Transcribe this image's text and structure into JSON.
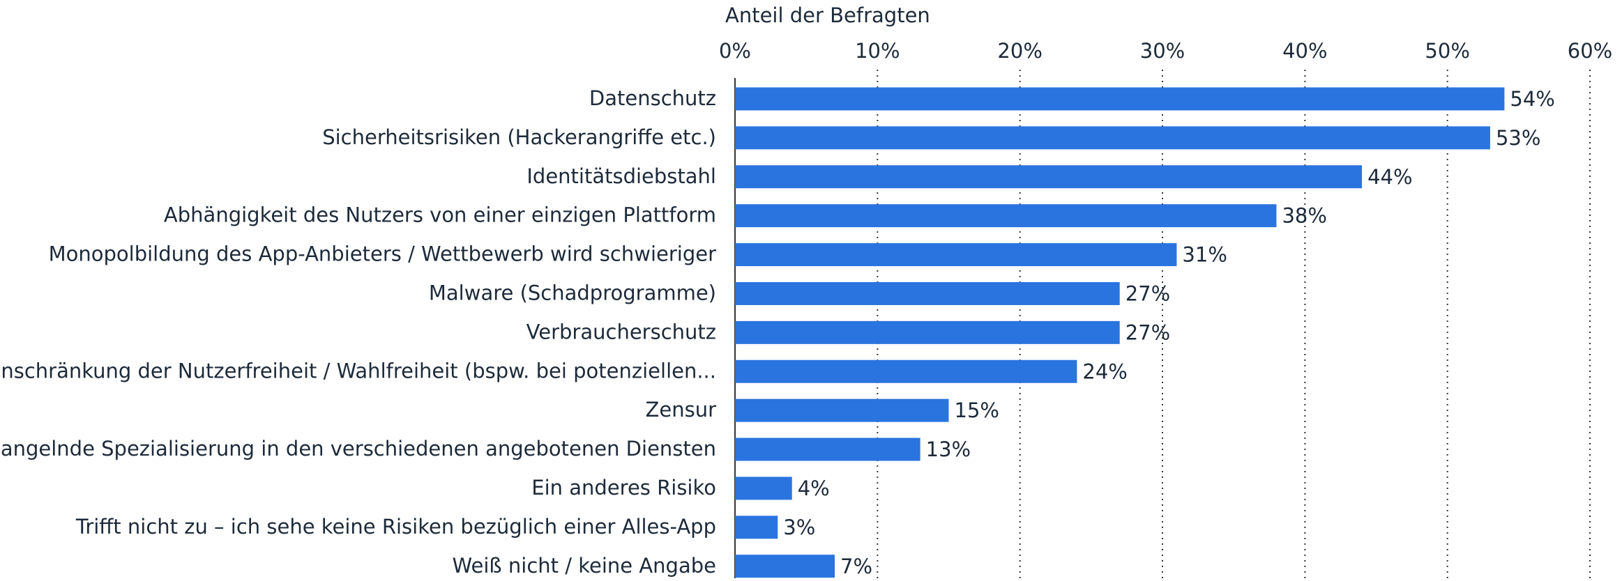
{
  "chart_data": {
    "type": "bar",
    "orientation": "horizontal",
    "x_axis_label": "Anteil der Befragten",
    "categories": [
      "Datenschutz",
      "Sicherheitsrisiken (Hackerangriffe etc.)",
      "Identitätsdiebstahl",
      "Abhängigkeit des Nutzers von einer einzigen Plattform",
      "Monopolbildung des App-Anbieters / Wettbewerb wird schwieriger",
      "Malware (Schadprogramme)",
      "Verbraucherschutz",
      "Einschränkung der Nutzerfreiheit / Wahlfreiheit (bspw. bei potenziellen...",
      "Zensur",
      "Mangelnde Spezialisierung in den verschiedenen angebotenen Diensten",
      "Ein anderes Risiko",
      "Trifft nicht zu – ich sehe keine Risiken bezüglich einer Alles-App",
      "Weiß nicht / keine Angabe"
    ],
    "values": [
      54,
      53,
      44,
      38,
      31,
      27,
      27,
      24,
      15,
      13,
      4,
      3,
      7
    ],
    "value_labels": [
      "54%",
      "53%",
      "44%",
      "38%",
      "31%",
      "27%",
      "27%",
      "24%",
      "15%",
      "13%",
      "4%",
      "3%",
      "7%"
    ],
    "color": "#2a74df",
    "xlim": [
      0,
      60
    ],
    "xticks": [
      {
        "value": 0,
        "label": "0%"
      },
      {
        "value": 10,
        "label": "10%"
      },
      {
        "value": 20,
        "label": "20%"
      },
      {
        "value": 30,
        "label": "30%"
      },
      {
        "value": 40,
        "label": "40%"
      },
      {
        "value": 50,
        "label": "50%"
      },
      {
        "value": 60,
        "label": "60%"
      }
    ],
    "grid": true
  }
}
